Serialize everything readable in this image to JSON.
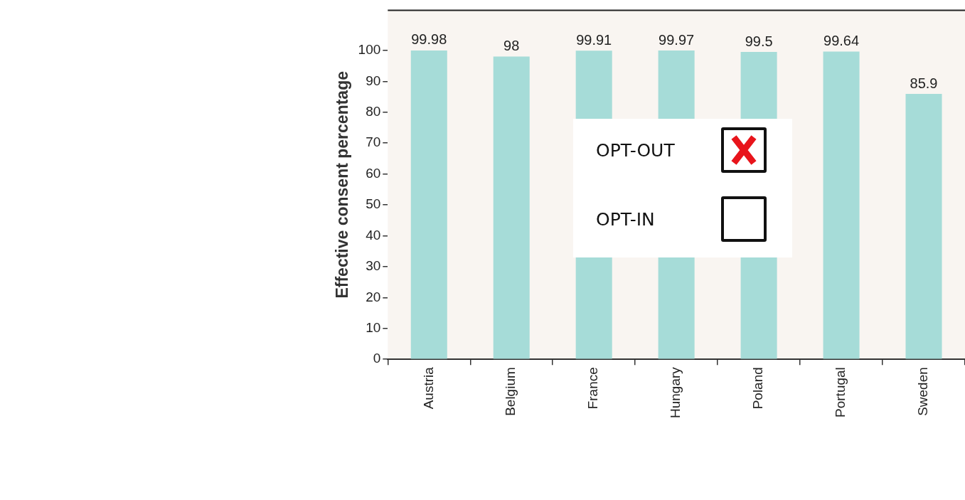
{
  "chart_data": {
    "type": "bar",
    "ylabel": "Effective consent percentage",
    "categories": [
      "Austria",
      "Belgium",
      "France",
      "Hungary",
      "Poland",
      "Portugal",
      "Sweden"
    ],
    "values": [
      99.98,
      98,
      99.91,
      99.97,
      99.5,
      99.64,
      85.9
    ],
    "color": "#a6dcd8",
    "ylim": [
      0,
      113
    ],
    "yticks": [
      0,
      10,
      20,
      30,
      40,
      50,
      60,
      70,
      80,
      90,
      100
    ],
    "data_labels": true,
    "grid": false,
    "legend": false,
    "annotations": [
      "OPT-OUT",
      "OPT-IN"
    ]
  }
}
